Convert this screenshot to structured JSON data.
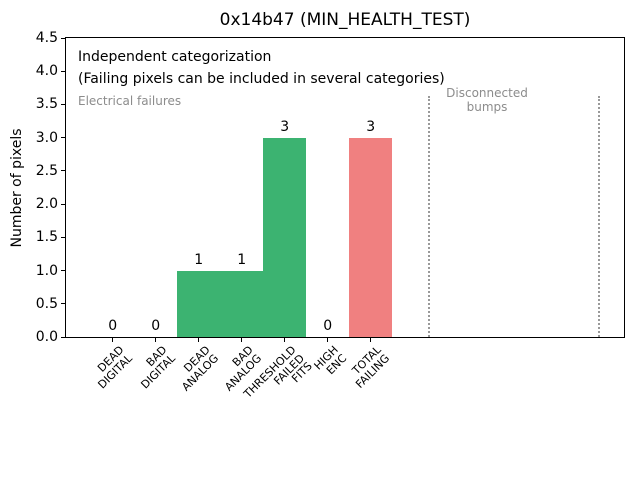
{
  "figure": {
    "title": "0x14b47 (MIN_HEALTH_TEST)",
    "ylabel": "Number of pixels"
  },
  "annotations": {
    "independent": "Independent categorization",
    "parenthetical": "(Failing pixels can be included in several categories)",
    "electrical": "Electrical failures",
    "disconnected": "Disconnected\nbumps"
  },
  "chart_data": {
    "type": "bar",
    "title": "0x14b47 (MIN_HEALTH_TEST)",
    "xlabel": "",
    "ylabel": "Number of pixels",
    "categories": [
      "DEAD\nDIGITAL",
      "BAD\nDIGITAL",
      "DEAD\nANALOG",
      "BAD\nANALOG",
      "THRESHOLD\nFAILED\nFITS",
      "HIGH\nENC",
      "TOTAL\nFAILING"
    ],
    "values": [
      0,
      0,
      1,
      1,
      3,
      0,
      3
    ],
    "value_labels": [
      "0",
      "0",
      "1",
      "1",
      "3",
      "0",
      "3"
    ],
    "bar_colors": [
      "#3cb371",
      "#3cb371",
      "#3cb371",
      "#3cb371",
      "#3cb371",
      "#f08080",
      "#f08080"
    ],
    "bar_width": 1.0,
    "ylim": [
      0,
      4.5
    ],
    "yticks": [
      "0.0",
      "0.5",
      "1.0",
      "1.5",
      "2.0",
      "2.5",
      "3.0",
      "3.5",
      "4.0",
      "4.5"
    ],
    "grid": false,
    "legend": null,
    "annotations": [
      {
        "text": "Independent categorization",
        "color": "#000000"
      },
      {
        "text": "(Failing pixels can be included in several categories)",
        "color": "#000000"
      },
      {
        "text": "Electrical failures",
        "color": "#8c8c8c"
      },
      {
        "text": "Disconnected\nbumps",
        "color": "#8c8c8c"
      }
    ],
    "vlines": [
      {
        "x_axis_units": 7.36,
        "style": "dotted",
        "color": "#999999"
      },
      {
        "x_axis_units": 11.31,
        "style": "dotted",
        "color": "#999999"
      }
    ]
  },
  "colors": {
    "green_bar": "#3cb371",
    "red_bar": "#f08080",
    "gray_text": "#8c8c8c",
    "axis": "#000000",
    "background": "#ffffff"
  }
}
